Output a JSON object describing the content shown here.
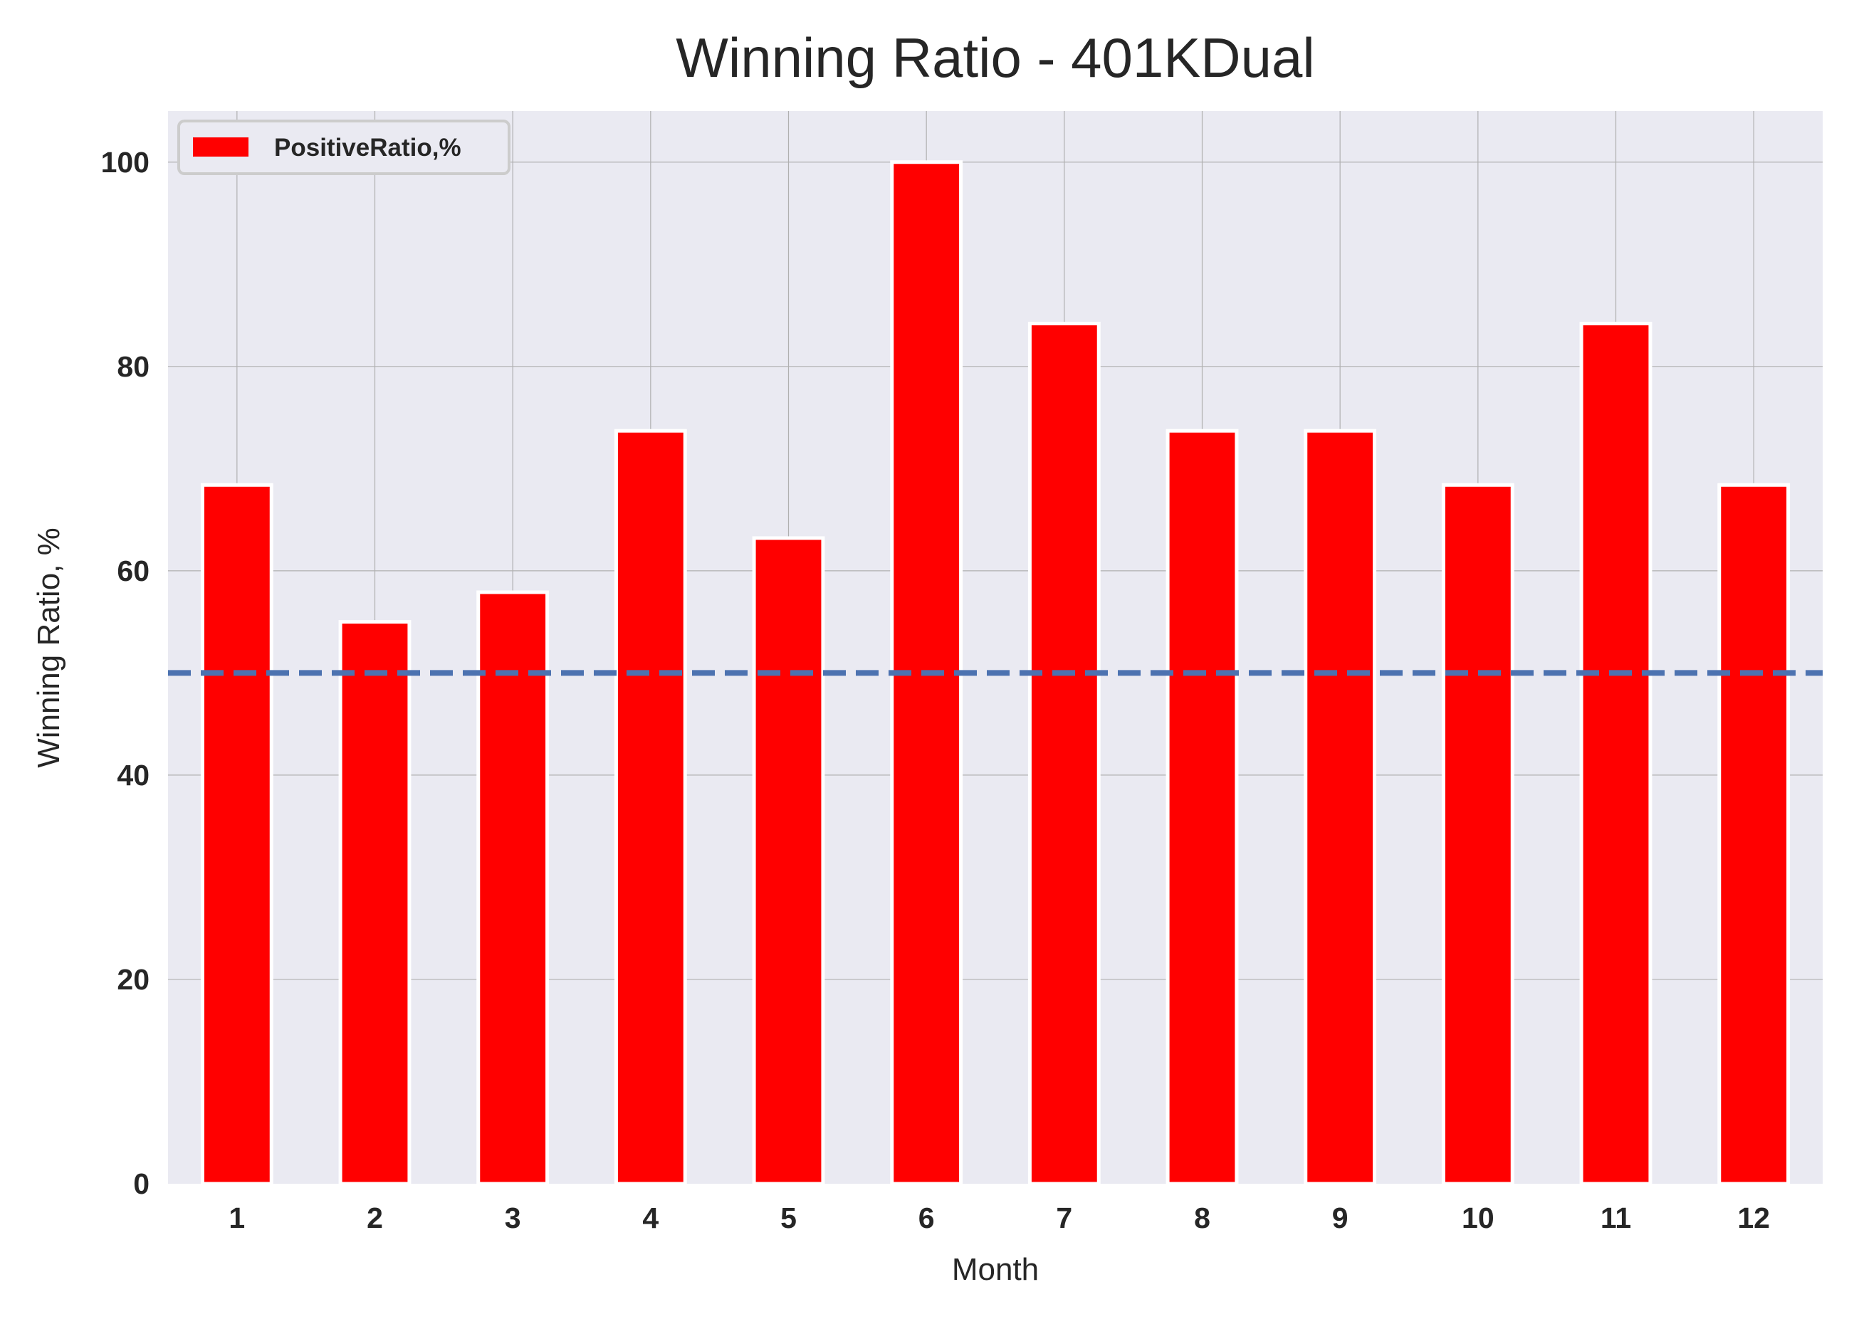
{
  "chart_data": {
    "type": "bar",
    "title": "Winning Ratio - 401KDual",
    "xlabel": "Month",
    "ylabel": "Winning Ratio, %",
    "categories": [
      "1",
      "2",
      "3",
      "4",
      "5",
      "6",
      "7",
      "8",
      "9",
      "10",
      "11",
      "12"
    ],
    "series": [
      {
        "name": "PositiveRatio,%",
        "values": [
          68.4,
          55.0,
          57.9,
          73.7,
          63.2,
          100.0,
          84.2,
          73.7,
          73.7,
          68.4,
          84.2,
          68.4
        ],
        "color": "#ff0000"
      }
    ],
    "yticks": [
      0,
      20,
      40,
      60,
      80,
      100
    ],
    "ylim": [
      0,
      105
    ],
    "reference_line": {
      "y": 50,
      "style": "dashed",
      "color": "#4c72b0"
    },
    "grid": true,
    "legend_position": "top-left",
    "background_color": "#eaeaf2",
    "grid_color": "#b0b0b0"
  }
}
